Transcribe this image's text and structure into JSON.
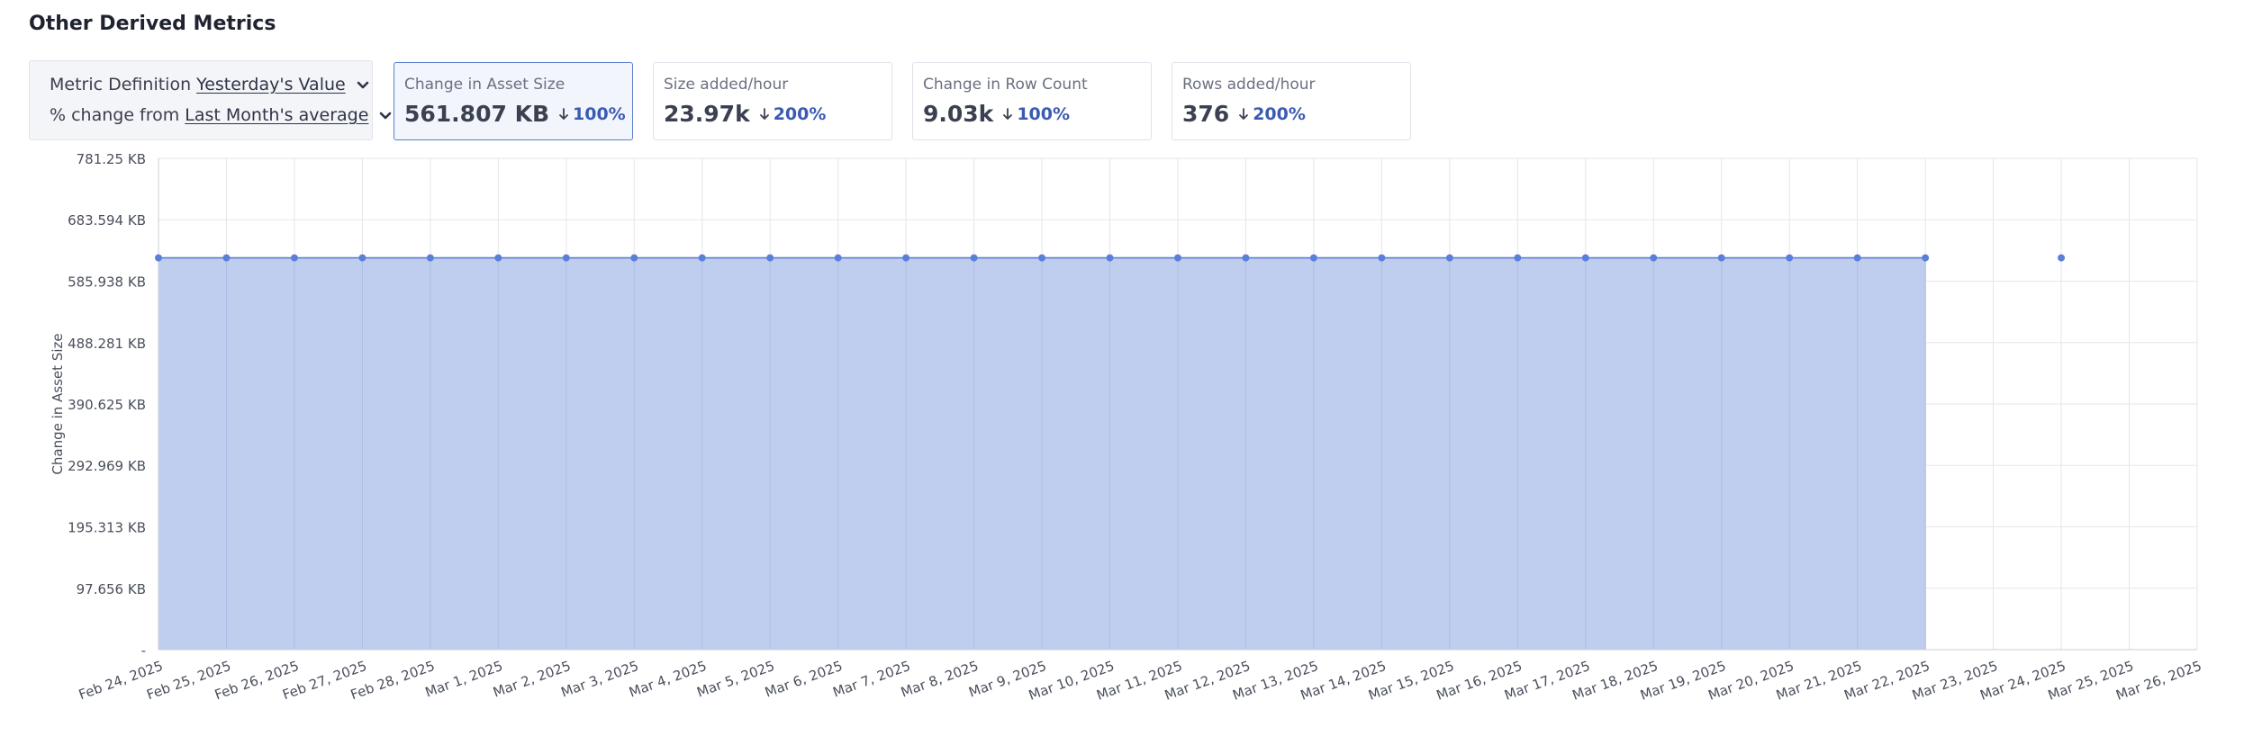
{
  "page": {
    "title": "Other Derived Metrics"
  },
  "definition": {
    "metric_label": "Metric Definition",
    "metric_value": "Yesterday's Value",
    "change_label": "% change from",
    "change_value": "Last Month's average"
  },
  "cards": [
    {
      "label": "Change in Asset Size",
      "value": "561.807 KB",
      "delta": "100%",
      "direction": "down",
      "active": true
    },
    {
      "label": "Size added/hour",
      "value": "23.97k",
      "delta": "200%",
      "direction": "down",
      "active": false
    },
    {
      "label": "Change in Row Count",
      "value": "9.03k",
      "delta": "100%",
      "direction": "down",
      "active": false
    },
    {
      "label": "Rows added/hour",
      "value": "376",
      "delta": "200%",
      "direction": "down",
      "active": false
    }
  ],
  "colors": {
    "accent": "#3b5bb3",
    "area_fill": "#bfcdee",
    "line": "#5b7fd8",
    "point": "#5b7fd8",
    "grid": "#e4e6ec"
  },
  "chart_data": {
    "type": "area",
    "ylabel": "Change in Asset Size",
    "y_unit": "KB",
    "ylim": [
      0,
      781.25
    ],
    "y_ticks": [
      0,
      97.656,
      195.313,
      292.969,
      390.625,
      488.281,
      585.938,
      683.594,
      781.25
    ],
    "y_tick_labels": [
      "-",
      "97.656 KB",
      "195.313 KB",
      "292.969 KB",
      "390.625 KB",
      "488.281 KB",
      "585.938 KB",
      "683.594 KB",
      "781.25 KB"
    ],
    "x": [
      "Feb 24, 2025",
      "Feb 25, 2025",
      "Feb 26, 2025",
      "Feb 27, 2025",
      "Feb 28, 2025",
      "Mar 1, 2025",
      "Mar 2, 2025",
      "Mar 3, 2025",
      "Mar 4, 2025",
      "Mar 5, 2025",
      "Mar 6, 2025",
      "Mar 7, 2025",
      "Mar 8, 2025",
      "Mar 9, 2025",
      "Mar 10, 2025",
      "Mar 11, 2025",
      "Mar 12, 2025",
      "Mar 13, 2025",
      "Mar 14, 2025",
      "Mar 15, 2025",
      "Mar 16, 2025",
      "Mar 17, 2025",
      "Mar 18, 2025",
      "Mar 19, 2025",
      "Mar 20, 2025",
      "Mar 21, 2025",
      "Mar 22, 2025",
      "Mar 23, 2025",
      "Mar 24, 2025",
      "Mar 25, 2025",
      "Mar 26, 2025"
    ],
    "values": [
      623,
      623,
      623,
      623,
      623,
      623,
      623,
      623,
      623,
      623,
      623,
      623,
      623,
      623,
      623,
      623,
      623,
      623,
      623,
      623,
      623,
      623,
      623,
      623,
      623,
      623,
      623,
      null,
      623,
      null,
      null
    ],
    "filled_until_index": 26,
    "grid": true
  }
}
